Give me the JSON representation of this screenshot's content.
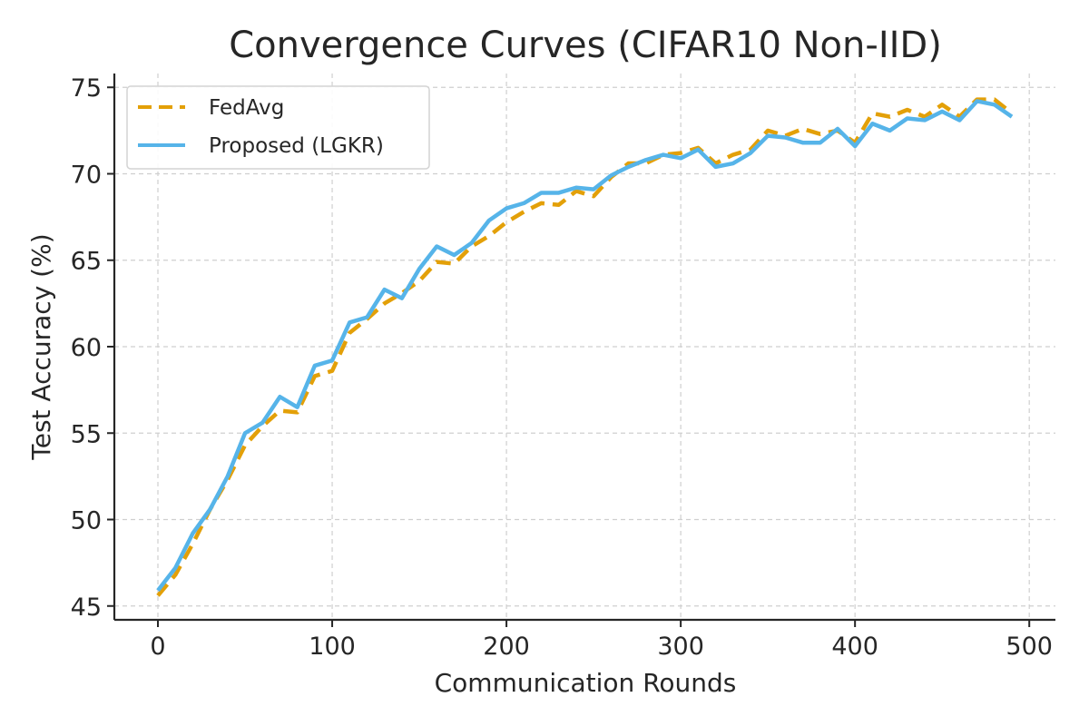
{
  "chart_data": {
    "type": "line",
    "title": "Convergence Curves (CIFAR10 Non-IID)",
    "xlabel": "Communication Rounds",
    "ylabel": "Test Accuracy (%)",
    "xlim": [
      -25,
      515
    ],
    "ylim": [
      44.2,
      75.8
    ],
    "xticks": [
      0,
      100,
      200,
      300,
      400,
      500
    ],
    "yticks": [
      45,
      50,
      55,
      60,
      65,
      70,
      75
    ],
    "grid": true,
    "legend_position": "upper-left",
    "x": [
      0,
      10,
      20,
      30,
      40,
      50,
      60,
      70,
      80,
      90,
      100,
      110,
      120,
      130,
      140,
      150,
      160,
      170,
      180,
      190,
      200,
      210,
      220,
      230,
      240,
      250,
      260,
      270,
      280,
      290,
      300,
      310,
      320,
      330,
      340,
      350,
      360,
      370,
      380,
      390,
      400,
      410,
      420,
      430,
      440,
      450,
      460,
      470,
      480,
      490
    ],
    "series": [
      {
        "name": "FedAvg",
        "color": "#E3A008",
        "style": "dashed",
        "values": [
          45.6,
          46.8,
          48.6,
          50.6,
          52.3,
          54.3,
          55.4,
          56.3,
          56.2,
          58.3,
          58.6,
          60.8,
          61.6,
          62.5,
          63.1,
          63.8,
          64.9,
          64.8,
          65.8,
          66.4,
          67.2,
          67.8,
          68.3,
          68.2,
          69.0,
          68.7,
          69.8,
          70.6,
          70.6,
          71.1,
          71.2,
          71.5,
          70.6,
          71.1,
          71.4,
          72.5,
          72.2,
          72.6,
          72.3,
          72.5,
          71.8,
          73.5,
          73.3,
          73.7,
          73.3,
          74.0,
          73.3,
          74.3,
          74.3,
          73.5
        ]
      },
      {
        "name": "Proposed (LGKR)",
        "color": "#56B4E9",
        "style": "solid",
        "values": [
          45.9,
          47.2,
          49.2,
          50.6,
          52.5,
          55.0,
          55.6,
          57.1,
          56.5,
          58.9,
          59.2,
          61.4,
          61.7,
          63.3,
          62.8,
          64.5,
          65.8,
          65.3,
          66.0,
          67.3,
          68.0,
          68.3,
          68.9,
          68.9,
          69.2,
          69.1,
          69.9,
          70.4,
          70.8,
          71.1,
          70.9,
          71.4,
          70.4,
          70.6,
          71.2,
          72.2,
          72.1,
          71.8,
          71.8,
          72.6,
          71.6,
          72.9,
          72.5,
          73.2,
          73.1,
          73.6,
          73.1,
          74.2,
          74.0,
          73.3
        ]
      }
    ]
  }
}
